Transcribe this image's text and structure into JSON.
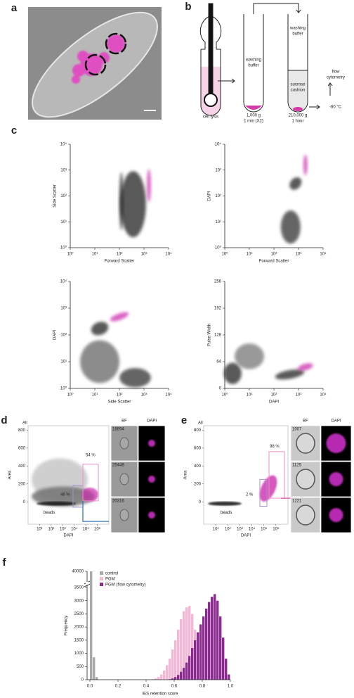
{
  "panel_a": {
    "label": "a"
  },
  "panel_b": {
    "label": "b",
    "cell_lysis": "cell lysis",
    "washing_1": [
      "washing",
      "buffer"
    ],
    "spin_1": [
      "1,000 g",
      "1 min (X2)"
    ],
    "washing_2": [
      "washing",
      "buffer"
    ],
    "cushion": [
      "sucrose",
      "cushion"
    ],
    "spin_2": [
      "210,000 g",
      "1 hour"
    ],
    "flow": [
      "flow",
      "cytometry"
    ],
    "freeze": "-80 °C"
  },
  "panel_c": {
    "label": "c",
    "plots": [
      {
        "x_label": "Forward Scatter",
        "y_label": "Side Scatter",
        "xticks": [
          {
            "value": 1,
            "label": "10⁰"
          },
          {
            "value": 10,
            "label": "10¹"
          },
          {
            "value": 100,
            "label": "10²"
          },
          {
            "value": 1000,
            "label": "10³"
          },
          {
            "value": 10000,
            "label": "10⁴"
          }
        ],
        "yticks": [
          {
            "value": 1,
            "label": "10⁰"
          },
          {
            "value": 10,
            "label": "10¹"
          },
          {
            "value": 100,
            "label": "10²"
          },
          {
            "value": 1000,
            "label": "10³"
          },
          {
            "value": 10000,
            "label": "10⁴"
          }
        ]
      },
      {
        "x_label": "Forward Scatter",
        "y_label": "DAPI",
        "xticks": [
          {
            "value": 1,
            "label": "10⁰"
          },
          {
            "value": 10,
            "label": "10¹"
          },
          {
            "value": 100,
            "label": "10²"
          },
          {
            "value": 1000,
            "label": "10³"
          },
          {
            "value": 10000,
            "label": "10⁴"
          }
        ],
        "yticks": [
          {
            "value": 1,
            "label": "10⁰"
          },
          {
            "value": 10,
            "label": "10¹"
          },
          {
            "value": 100,
            "label": "10²"
          },
          {
            "value": 1000,
            "label": "10³"
          },
          {
            "value": 10000,
            "label": "10⁴"
          }
        ]
      },
      {
        "x_label": "Side Scatter",
        "y_label": "DAPI",
        "xticks": [
          {
            "value": 1,
            "label": "10⁰"
          },
          {
            "value": 10,
            "label": "10¹"
          },
          {
            "value": 100,
            "label": "10²"
          },
          {
            "value": 1000,
            "label": "10³"
          },
          {
            "value": 10000,
            "label": "10⁴"
          }
        ],
        "yticks": [
          {
            "value": 1,
            "label": "10⁰"
          },
          {
            "value": 10,
            "label": "10¹"
          },
          {
            "value": 100,
            "label": "10²"
          },
          {
            "value": 1000,
            "label": "10³"
          },
          {
            "value": 10000,
            "label": "10⁴"
          }
        ]
      },
      {
        "x_label": "DAPI",
        "y_label": "Pulse Width",
        "xticks": [
          {
            "value": 1,
            "label": "10⁰"
          },
          {
            "value": 10,
            "label": "10¹"
          },
          {
            "value": 100,
            "label": "10²"
          },
          {
            "value": 1000,
            "label": "10³"
          },
          {
            "value": 10000,
            "label": "10⁴"
          }
        ],
        "yticks": [
          0,
          64,
          128,
          192,
          256
        ]
      }
    ]
  },
  "panel_d": {
    "label": "d",
    "gate_all": "All",
    "y_label": "Area",
    "x_label": "DAPI",
    "beads": "beads",
    "pct_low": "46 %",
    "pct_high": "54 %",
    "ylim": [
      -250,
      850
    ],
    "yticks": [
      0,
      200,
      400,
      600,
      800
    ],
    "xlim": [
      1,
      10000000
    ],
    "xticks": [
      {
        "value": 10,
        "label": "10¹"
      },
      {
        "value": 100,
        "label": "10²"
      },
      {
        "value": 1000,
        "label": "10³"
      },
      {
        "value": 10000,
        "label": "10⁴"
      },
      {
        "value": 100000,
        "label": "10⁵"
      },
      {
        "value": 1000000,
        "label": "10⁶"
      }
    ],
    "image_headers": [
      "BF",
      "DAPI"
    ],
    "image_ids": [
      "18894",
      "25448",
      "20316"
    ]
  },
  "panel_e": {
    "label": "e",
    "gate_all": "All",
    "y_label": "Area",
    "x_label": "DAPI",
    "beads": "beads",
    "pct_low": "2 %",
    "pct_high": "98 %",
    "ylim": [
      -250,
      850
    ],
    "yticks": [
      0,
      200,
      400,
      600,
      800
    ],
    "xlim": [
      1,
      10000000
    ],
    "xticks": [
      {
        "value": 10,
        "label": "10¹"
      },
      {
        "value": 100,
        "label": "10²"
      },
      {
        "value": 1000,
        "label": "10³"
      },
      {
        "value": 10000,
        "label": "10⁴"
      },
      {
        "value": 100000,
        "label": "10⁵"
      },
      {
        "value": 1000000,
        "label": "10⁶"
      }
    ],
    "image_headers": [
      "BF",
      "DAPI"
    ],
    "image_ids": [
      "1007",
      "1125",
      "1221"
    ]
  },
  "panel_f": {
    "label": "f"
  },
  "chart_data": {
    "type": "histogram",
    "x_label": "IES retention score",
    "y_label": "Frequency",
    "bins": [
      0,
      0.02,
      0.04,
      0.06,
      0.08,
      0.1,
      0.12,
      0.14,
      0.16,
      0.18,
      0.2,
      0.22,
      0.24,
      0.26,
      0.28,
      0.3,
      0.32,
      0.34,
      0.36,
      0.38,
      0.4,
      0.42,
      0.44,
      0.46,
      0.48,
      0.5,
      0.52,
      0.54,
      0.56,
      0.58,
      0.6,
      0.62,
      0.64,
      0.66,
      0.68,
      0.7,
      0.72,
      0.74,
      0.76,
      0.78,
      0.8,
      0.82,
      0.84,
      0.86,
      0.88,
      0.9,
      0.92,
      0.94,
      0.96,
      0.98,
      1
    ],
    "xlim": [
      0,
      1
    ],
    "xticks": [
      {
        "value": 0,
        "label": "0.0"
      },
      0.2,
      0.4,
      0.6,
      0.8,
      {
        "value": 1,
        "label": "1.0"
      }
    ],
    "ylim": [
      0,
      40000
    ],
    "y_break": 3500,
    "yticks": [
      0,
      500,
      1000,
      1500,
      2000,
      2500,
      3000,
      3500,
      40000
    ],
    "series": [
      {
        "name": "control",
        "color": "#a9a9a9",
        "values": [
          40000,
          850,
          100,
          0,
          0,
          0,
          0,
          0,
          0,
          0,
          0,
          0,
          0,
          0,
          0,
          0,
          0,
          0,
          0,
          0,
          0,
          0,
          0,
          0,
          0,
          0,
          0,
          0,
          0,
          0,
          0,
          0,
          0,
          0,
          0,
          0,
          0,
          0,
          0,
          0,
          0,
          0,
          0,
          0,
          0,
          0,
          0,
          0,
          0,
          0
        ]
      },
      {
        "name": "PGM",
        "color": "#f2b8d6",
        "values": [
          0,
          0,
          0,
          0,
          0,
          0,
          0,
          0,
          0,
          0,
          0,
          0,
          0,
          0,
          0,
          0,
          0,
          0,
          0,
          0,
          0,
          0,
          20,
          50,
          100,
          200,
          350,
          550,
          800,
          1150,
          1500,
          1900,
          2300,
          2600,
          2750,
          2800,
          2500,
          1900,
          1200,
          600,
          250,
          80,
          20,
          0,
          0,
          0,
          0,
          0,
          0,
          0
        ]
      },
      {
        "name": "PGM (flow cytometry)",
        "color": "#8b2a8f",
        "values": [
          0,
          0,
          0,
          0,
          0,
          0,
          0,
          0,
          0,
          0,
          0,
          0,
          0,
          0,
          0,
          0,
          0,
          0,
          0,
          0,
          0,
          0,
          0,
          0,
          0,
          0,
          0,
          0,
          20,
          50,
          100,
          180,
          300,
          450,
          650,
          900,
          1200,
          1500,
          1800,
          2100,
          2400,
          2700,
          2950,
          3150,
          3250,
          3000,
          2400,
          1600,
          800,
          200
        ]
      }
    ]
  }
}
